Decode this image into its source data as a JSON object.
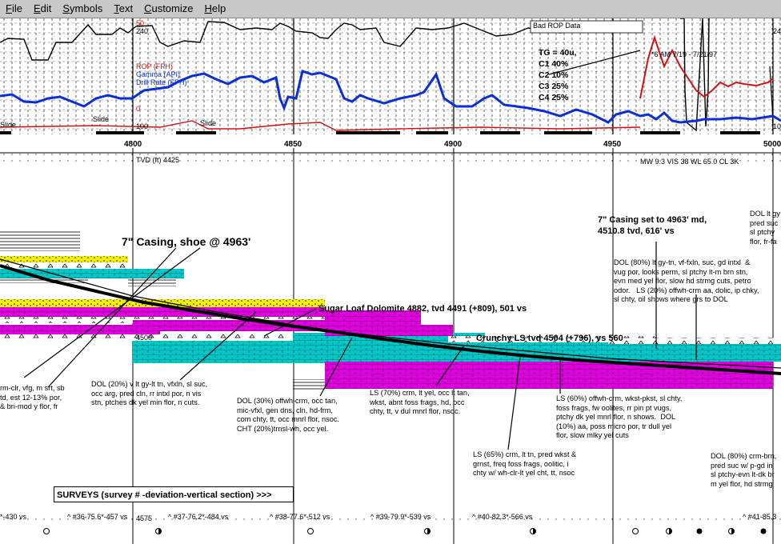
{
  "menu": [
    "File",
    "Edit",
    "Symbols",
    "Text",
    "Customize",
    "Help"
  ],
  "top_log": {
    "scale_50": "50",
    "scale_240": "240",
    "scale_0": "0",
    "scale_100": "100",
    "curve_labels": [
      "ROP (FPH)",
      "Gamma (API)",
      "Drill Rate (FPH)"
    ],
    "bad_rop": "Bad ROP Data",
    "date_note": "*6 AM 7/19 - 7/21/97",
    "slide_labels": [
      "Slide",
      "Slide",
      "Slide"
    ],
    "gas": [
      "TG = 40u,",
      "C1 40%",
      "C2 10%",
      "C3 25%",
      "C4 25%"
    ],
    "colors": {
      "gamma": "#0a2fd8",
      "rop": "#000000",
      "red": "#d01010"
    }
  },
  "ruler": {
    "ticks": [
      "4800",
      "4850",
      "4900",
      "4950",
      "5000"
    ]
  },
  "header": {
    "tvd_label": "TVD (ft) 4425",
    "mud": "MW 9.3 VIS 38 WL 65.0 CL 3K"
  },
  "depth_labels": [
    "4500",
    "4575"
  ],
  "annotations": {
    "casing_shoe": "7\" Casing, shoe @ 4963'",
    "casing_set_1": "7\" Casing set to 4963' md,",
    "casing_set_2": "4510.8 tvd, 616' vs",
    "sugar_loaf": "Sugar Loaf Dolomite 4882, tvd 4491 (+809), 501 vs",
    "crunchy": "Crunchy LS  tvd 4504 (+796), vs 560"
  },
  "descriptions": [
    "DOL (80%) lt gy-tn, vf-fxln, suc, gd intxl  &\nvug por, looks perm, sl ptchy lt-m brn stn,\nevn med yel flor, slow hd strmg cuts, petro\nodor.   LS (20%) offwh-crm aa, dolic, ip chky,\nsl chty, oil shows where grs to DOL",
    "DOL lt gy\npred suc\nsl ptchy\nflor, fr-fa",
    "rm-clr, vfg, m srt, sb\ntd, est 12-13% por,\n& bri-mod y flor, fr",
    "DOL (20%) v lt gy-lt tn, vfxln, sl suc,\nocc arg, pred cln, rr intxl por, n vis\nstn, ptches dk yel min flor, n cuts.",
    "DOL (30%) offwh-crm, occ tan,\nmic-vfxl, gen dns, cln, hd-frm,\ncom chty, tt, occ mnrl flor, nsoc.\nCHT (20%)trnsl-wh, occ yel.",
    "LS (70%) crm, lt yel, occ lt tan,\nwkst, abnt foss frags, hd, occ\nchty, tt, v dul mnrl flor, nsoc.",
    "LS (60%) offwh-crm, wkst-pkst, sl chty,\nfoss frags, fw oolites, rr pin pt vugs,\nptchy dk yel mnrl flor, n shows.  DOL\n(10%) aa, poss micro por, tr dull yel\nflor, slow mlky yel cuts",
    "LS (65%) crm, lt tn, pred wkst &\ngrnst, freq foss frags, oolitic, i\nchty w/ wh-clr-lt yel cht, tt, nsoc",
    "DOL (80%) crm-brn,\npred suc w/ p-gd in\nsl ptchy-evn lt-dk br\nm yel flor, hd strmg"
  ],
  "surveys_label": "SURVEYS (survey # -deviation-vertical section) >>>",
  "surveys": [
    "*-430 vs",
    "^ #36-75.6*-457 vs",
    "^ #37-76.2*-484 vs",
    "^ #38-77.6*-512 vs",
    "^ #39-79.9*-539 vs",
    "^ #40-82.3*-566 vs",
    "^ #41-85.3"
  ],
  "lith_colors": {
    "cyan": "#00c8c8",
    "magenta": "#e000e0",
    "yellow": "#f0f000",
    "line": "#000000"
  }
}
